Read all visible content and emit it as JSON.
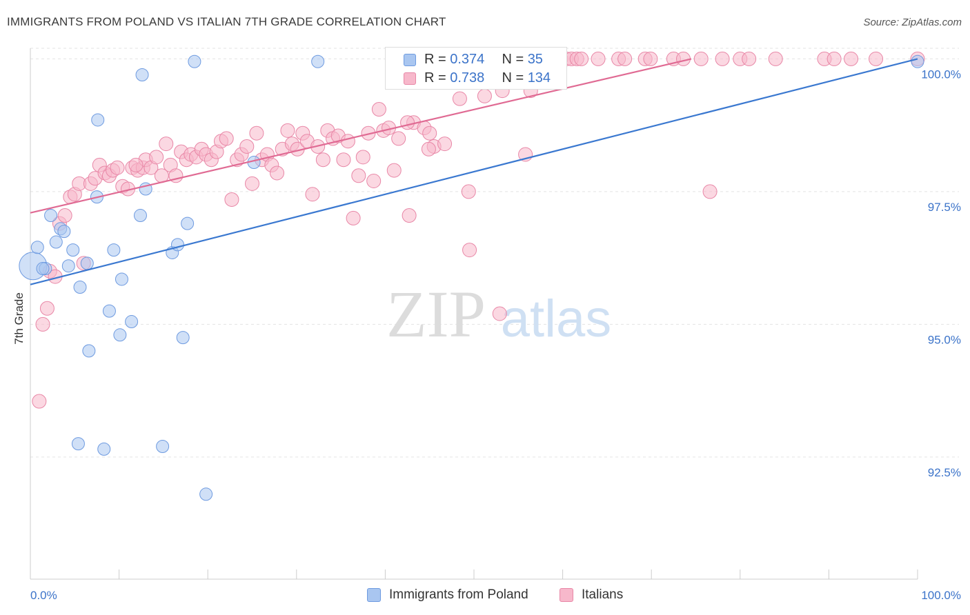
{
  "title": "IMMIGRANTS FROM POLAND VS ITALIAN 7TH GRADE CORRELATION CHART",
  "source": "Source: ZipAtlas.com",
  "watermark": {
    "zip": "ZIP",
    "atlas": "atlas"
  },
  "legend": {
    "rows": [
      {
        "r_label": "R = ",
        "r_value": "0.374",
        "n_label": "N = ",
        "n_value": "35",
        "color": "#a9c6f0",
        "stroke": "#6d9ae0"
      },
      {
        "r_label": "R = ",
        "r_value": "0.738",
        "n_label": "N = ",
        "n_value": "134",
        "color": "#f7b8cb",
        "stroke": "#e886a6"
      }
    ]
  },
  "chart_data": {
    "type": "scatter",
    "xlabel": "",
    "ylabel": "7th Grade",
    "xlim": [
      0,
      100
    ],
    "ylim": [
      90.2,
      100.2
    ],
    "x_tick_labels": [
      "0.0%",
      "100.0%"
    ],
    "y_ticks": [
      92.5,
      95.0,
      97.5,
      100.0
    ],
    "y_tick_labels": [
      "92.5%",
      "95.0%",
      "97.5%",
      "100.0%"
    ],
    "grid": true,
    "series": [
      {
        "name": "Immigrants from Poland",
        "color": "#a9c6f0",
        "stroke": "#6d9ae0",
        "line_color": "#3a78d0",
        "trend": [
          [
            0,
            95.75
          ],
          [
            100,
            100.0
          ]
        ],
        "points": [
          [
            0.3,
            96.1,
            20
          ],
          [
            0.8,
            96.45,
            9
          ],
          [
            1.7,
            96.05,
            9
          ],
          [
            2.3,
            97.05,
            9
          ],
          [
            2.9,
            96.55,
            9
          ],
          [
            3.4,
            96.8,
            9
          ],
          [
            3.8,
            96.75,
            9
          ],
          [
            4.3,
            96.1,
            9
          ],
          [
            4.8,
            96.4,
            9
          ],
          [
            5.6,
            95.7,
            9
          ],
          [
            6.4,
            96.15,
            9
          ],
          [
            7.5,
            97.4,
            9
          ],
          [
            7.6,
            98.85,
            9
          ],
          [
            8.9,
            95.25,
            9
          ],
          [
            9.4,
            96.4,
            9
          ],
          [
            10.1,
            94.8,
            9
          ],
          [
            10.3,
            95.85,
            9
          ],
          [
            11.4,
            95.05,
            9
          ],
          [
            12.4,
            97.05,
            9
          ],
          [
            12.6,
            99.7,
            9
          ],
          [
            13.0,
            97.55,
            9
          ],
          [
            6.6,
            94.5,
            9
          ],
          [
            16.0,
            96.35,
            9
          ],
          [
            16.6,
            96.5,
            9
          ],
          [
            17.2,
            94.75,
            9
          ],
          [
            17.7,
            96.9,
            9
          ],
          [
            18.5,
            99.95,
            9
          ],
          [
            19.8,
            91.8,
            9
          ],
          [
            25.2,
            98.05,
            9
          ],
          [
            32.4,
            99.95,
            9
          ],
          [
            5.4,
            92.75,
            9
          ],
          [
            8.3,
            92.65,
            9
          ],
          [
            14.9,
            92.7,
            9
          ],
          [
            100.0,
            99.95,
            9
          ],
          [
            1.4,
            96.05,
            9
          ]
        ]
      },
      {
        "name": "Italians",
        "color": "#f7b8cb",
        "stroke": "#e886a6",
        "line_color": "#e06a93",
        "trend": [
          [
            0,
            97.1
          ],
          [
            74.5,
            100.0
          ]
        ],
        "points": [
          [
            1.0,
            93.55,
            10
          ],
          [
            1.4,
            95.0,
            10
          ],
          [
            1.9,
            95.3,
            10
          ],
          [
            2.2,
            96.0,
            10
          ],
          [
            2.8,
            95.9,
            10
          ],
          [
            3.3,
            96.9,
            10
          ],
          [
            3.9,
            97.05,
            10
          ],
          [
            4.5,
            97.4,
            10
          ],
          [
            5.0,
            97.45,
            10
          ],
          [
            5.5,
            97.65,
            10
          ],
          [
            6.0,
            96.15,
            10
          ],
          [
            6.8,
            97.65,
            10
          ],
          [
            7.3,
            97.75,
            10
          ],
          [
            7.8,
            98.0,
            10
          ],
          [
            8.4,
            97.85,
            10
          ],
          [
            8.9,
            97.8,
            10
          ],
          [
            9.3,
            97.9,
            10
          ],
          [
            9.8,
            97.95,
            10
          ],
          [
            10.4,
            97.6,
            10
          ],
          [
            11.0,
            97.55,
            10
          ],
          [
            11.5,
            97.95,
            10
          ],
          [
            12.1,
            97.9,
            10
          ],
          [
            12.7,
            97.95,
            10
          ],
          [
            13.0,
            98.1,
            10
          ],
          [
            13.6,
            97.95,
            10
          ],
          [
            14.2,
            98.15,
            10
          ],
          [
            14.8,
            97.8,
            10
          ],
          [
            15.3,
            98.4,
            10
          ],
          [
            15.8,
            98.0,
            10
          ],
          [
            16.4,
            97.8,
            10
          ],
          [
            17.0,
            98.25,
            10
          ],
          [
            17.6,
            98.1,
            10
          ],
          [
            18.1,
            98.2,
            10
          ],
          [
            18.7,
            98.15,
            10
          ],
          [
            19.3,
            98.3,
            10
          ],
          [
            19.8,
            98.2,
            10
          ],
          [
            20.4,
            98.1,
            10
          ],
          [
            21.0,
            98.25,
            10
          ],
          [
            21.5,
            98.45,
            10
          ],
          [
            22.1,
            98.5,
            10
          ],
          [
            22.7,
            97.35,
            10
          ],
          [
            23.3,
            98.1,
            10
          ],
          [
            23.8,
            98.2,
            10
          ],
          [
            24.4,
            98.35,
            10
          ],
          [
            25.0,
            97.65,
            10
          ],
          [
            25.5,
            98.6,
            10
          ],
          [
            26.1,
            98.1,
            10
          ],
          [
            26.7,
            98.2,
            10
          ],
          [
            27.2,
            98.0,
            10
          ],
          [
            27.8,
            97.85,
            10
          ],
          [
            28.4,
            98.3,
            10
          ],
          [
            29.0,
            98.65,
            10
          ],
          [
            29.5,
            98.4,
            10
          ],
          [
            30.1,
            98.3,
            10
          ],
          [
            30.7,
            98.6,
            10
          ],
          [
            31.2,
            98.45,
            10
          ],
          [
            31.8,
            97.45,
            10
          ],
          [
            32.4,
            98.35,
            10
          ],
          [
            33.0,
            98.1,
            10
          ],
          [
            33.5,
            98.65,
            10
          ],
          [
            34.1,
            98.5,
            10
          ],
          [
            34.7,
            98.55,
            10
          ],
          [
            35.3,
            98.1,
            10
          ],
          [
            35.8,
            98.45,
            10
          ],
          [
            36.4,
            97.0,
            10
          ],
          [
            37.0,
            97.8,
            10
          ],
          [
            37.5,
            98.15,
            10
          ],
          [
            38.1,
            98.6,
            10
          ],
          [
            38.7,
            97.7,
            10
          ],
          [
            39.3,
            99.05,
            10
          ],
          [
            39.8,
            98.65,
            10
          ],
          [
            40.4,
            98.7,
            10
          ],
          [
            41.0,
            97.9,
            10
          ],
          [
            41.5,
            98.5,
            10
          ],
          [
            42.1,
            100.0,
            10
          ],
          [
            42.7,
            97.05,
            10
          ],
          [
            43.2,
            98.8,
            10
          ],
          [
            43.8,
            100.0,
            10
          ],
          [
            44.4,
            98.7,
            10
          ],
          [
            45.0,
            98.6,
            10
          ],
          [
            45.5,
            98.35,
            10
          ],
          [
            46.1,
            100.0,
            10
          ],
          [
            46.7,
            98.4,
            10
          ],
          [
            47.3,
            100.0,
            10
          ],
          [
            47.8,
            100.0,
            10
          ],
          [
            48.4,
            99.25,
            10
          ],
          [
            49.0,
            100.0,
            10
          ],
          [
            49.5,
            96.4,
            10
          ],
          [
            50.1,
            100.0,
            10
          ],
          [
            50.7,
            100.0,
            10
          ],
          [
            51.2,
            99.3,
            10
          ],
          [
            51.8,
            100.0,
            10
          ],
          [
            52.4,
            100.0,
            10
          ],
          [
            52.9,
            95.2,
            10
          ],
          [
            53.5,
            100.0,
            10
          ],
          [
            54.1,
            100.0,
            10
          ],
          [
            54.7,
            100.0,
            10
          ],
          [
            55.2,
            100.0,
            10
          ],
          [
            55.8,
            100.0,
            10
          ],
          [
            56.4,
            99.4,
            10
          ],
          [
            57.0,
            100.0,
            10
          ],
          [
            57.5,
            100.0,
            10
          ],
          [
            58.1,
            100.0,
            10
          ],
          [
            58.7,
            100.0,
            10
          ],
          [
            59.3,
            100.0,
            10
          ],
          [
            59.8,
            100.0,
            10
          ],
          [
            60.4,
            100.0,
            10
          ],
          [
            61.0,
            100.0,
            10
          ],
          [
            61.6,
            100.0,
            10
          ],
          [
            62.1,
            100.0,
            10
          ],
          [
            64.0,
            100.0,
            10
          ],
          [
            66.3,
            100.0,
            10
          ],
          [
            67.0,
            100.0,
            10
          ],
          [
            69.3,
            100.0,
            10
          ],
          [
            69.9,
            100.0,
            10
          ],
          [
            72.5,
            100.0,
            10
          ],
          [
            73.6,
            100.0,
            10
          ],
          [
            75.6,
            100.0,
            10
          ],
          [
            78.0,
            100.0,
            10
          ],
          [
            80.0,
            100.0,
            10
          ],
          [
            81.0,
            100.0,
            10
          ],
          [
            84.0,
            100.0,
            10
          ],
          [
            89.5,
            100.0,
            10
          ],
          [
            90.6,
            100.0,
            10
          ],
          [
            92.5,
            100.0,
            10
          ],
          [
            95.3,
            100.0,
            10
          ],
          [
            100.0,
            100.0,
            10
          ],
          [
            76.6,
            97.5,
            10
          ],
          [
            49.4,
            97.5,
            10
          ],
          [
            42.5,
            98.8,
            10
          ],
          [
            53.2,
            99.4,
            10
          ],
          [
            55.8,
            98.2,
            10
          ],
          [
            44.9,
            98.3,
            10
          ],
          [
            11.9,
            98.0,
            10
          ]
        ]
      }
    ]
  }
}
